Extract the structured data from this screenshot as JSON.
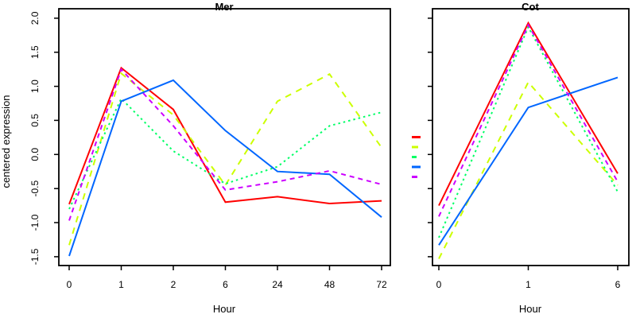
{
  "chart_data": [
    {
      "type": "line",
      "title": "Mer",
      "xlabel": "Hour",
      "ylabel": "centered expression",
      "x": [
        0,
        1,
        2,
        6,
        24,
        48,
        72
      ],
      "x_spacing": "categorical-equal",
      "ylim": [
        -1.5,
        2.0
      ],
      "y_ticks": [
        2.0,
        1.5,
        1.0,
        0.5,
        0.0,
        -0.5,
        -1.0,
        -1.5
      ],
      "grid": false,
      "series": [
        {
          "name": "red",
          "color": "#FF0000",
          "style": "solid",
          "values": [
            -0.73,
            1.27,
            0.66,
            -0.7,
            -0.62,
            -0.72,
            -0.68
          ]
        },
        {
          "name": "yellow",
          "color": "#CCFF00",
          "style": "long-dash",
          "values": [
            -1.33,
            1.19,
            0.58,
            -0.45,
            0.78,
            1.18,
            0.1
          ]
        },
        {
          "name": "green",
          "color": "#00FF66",
          "style": "dotted",
          "values": [
            -0.8,
            0.82,
            0.05,
            -0.43,
            -0.18,
            0.42,
            0.62
          ]
        },
        {
          "name": "blue",
          "color": "#0066FF",
          "style": "solid",
          "values": [
            -1.49,
            0.78,
            1.09,
            0.35,
            -0.25,
            -0.29,
            -0.92
          ]
        },
        {
          "name": "magenta",
          "color": "#CC00FF",
          "style": "dash",
          "values": [
            -0.97,
            1.25,
            0.42,
            -0.52,
            -0.4,
            -0.24,
            -0.44
          ]
        }
      ]
    },
    {
      "type": "line",
      "title": "Cot",
      "xlabel": "Hour",
      "x": [
        0,
        1,
        6
      ],
      "x_spacing": "categorical-equal",
      "ylim": [
        -1.5,
        2.0
      ],
      "y_ticks": [
        2.0,
        1.5,
        1.0,
        0.5,
        0.0,
        -0.5,
        -1.0,
        -1.5
      ],
      "y_tick_labels_shown": false,
      "grid": false,
      "series": [
        {
          "name": "red",
          "color": "#FF0000",
          "style": "solid",
          "values": [
            -0.75,
            1.93,
            -0.28
          ]
        },
        {
          "name": "yellow",
          "color": "#CCFF00",
          "style": "long-dash",
          "values": [
            -1.53,
            1.06,
            -0.45
          ]
        },
        {
          "name": "green",
          "color": "#00FF66",
          "style": "dotted",
          "values": [
            -1.22,
            1.87,
            -0.55
          ]
        },
        {
          "name": "blue",
          "color": "#0066FF",
          "style": "solid",
          "values": [
            -1.33,
            0.69,
            1.13
          ]
        },
        {
          "name": "magenta",
          "color": "#CC00FF",
          "style": "dash",
          "values": [
            -0.91,
            1.9,
            -0.4
          ]
        }
      ]
    }
  ],
  "legend": {
    "position": "left-of-second-panel",
    "labels_visible": false,
    "entries": [
      {
        "name": "red",
        "color": "#FF0000",
        "style": "solid"
      },
      {
        "name": "yellow",
        "color": "#CCFF00",
        "style": "long-dash"
      },
      {
        "name": "green",
        "color": "#00FF66",
        "style": "dotted"
      },
      {
        "name": "blue",
        "color": "#0066FF",
        "style": "solid"
      },
      {
        "name": "magenta",
        "color": "#CC00FF",
        "style": "dash"
      }
    ]
  }
}
